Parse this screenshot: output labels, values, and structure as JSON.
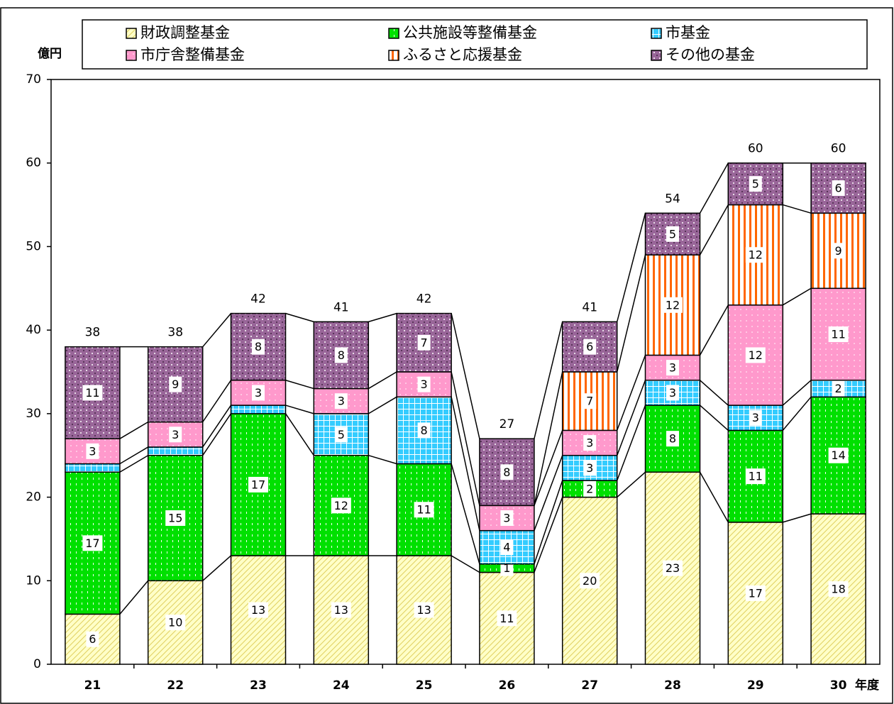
{
  "chart_data": {
    "type": "stacked_bar",
    "y_label": "億円",
    "x_label": "年度",
    "categories": [
      "21",
      "22",
      "23",
      "24",
      "25",
      "26",
      "27",
      "28",
      "29",
      "30"
    ],
    "series": [
      {
        "name": "財政調整基金",
        "color": "#ffffc8",
        "values": [
          6,
          10,
          13,
          13,
          13,
          11,
          20,
          23,
          17,
          18
        ]
      },
      {
        "name": "公共施設等整備基金",
        "color": "#00e000",
        "values": [
          17,
          15,
          17,
          12,
          11,
          1,
          2,
          8,
          11,
          14
        ]
      },
      {
        "name": "市基金",
        "color": "#33ccff",
        "values": [
          1,
          1,
          1,
          5,
          8,
          4,
          3,
          3,
          3,
          2
        ],
        "value_labels": [
          null,
          null,
          null,
          "5",
          "8",
          "4",
          "3",
          "3",
          "3",
          "2"
        ]
      },
      {
        "name": "市庁舎整備基金",
        "color": "#ff99cc",
        "values": [
          3,
          3,
          3,
          3,
          3,
          3,
          3,
          3,
          12,
          11
        ]
      },
      {
        "name": "ふるさと応援基金",
        "color": "#ff6600",
        "values": [
          null,
          null,
          null,
          null,
          null,
          null,
          7,
          12,
          12,
          9
        ]
      },
      {
        "name": "その他の基金",
        "color": "#996699",
        "values": [
          11,
          9,
          8,
          8,
          7,
          8,
          6,
          5,
          5,
          6
        ]
      }
    ],
    "totals": [
      38,
      38,
      42,
      41,
      42,
      27,
      41,
      54,
      60,
      60
    ],
    "ylim": [
      0,
      70
    ],
    "yticks": [
      0,
      10,
      20,
      30,
      40,
      50,
      60,
      70
    ],
    "grid": false,
    "legend": "top"
  }
}
